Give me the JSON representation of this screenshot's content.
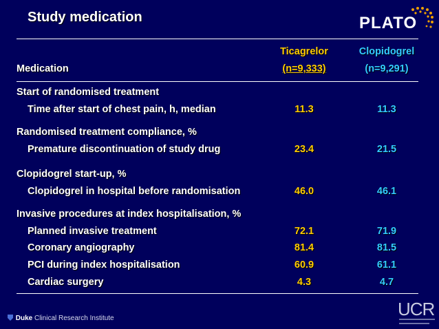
{
  "slide": {
    "title": "Study medication",
    "logo_text": "PLATO",
    "header": {
      "row_label": "Medication",
      "col1_name": "Ticagrelor",
      "col1_n": "(n=9,333)",
      "col2_name": "Clopidogrel",
      "col2_n": "(n=9,291)"
    },
    "sections": [
      {
        "heading": "Start of randomised treatment",
        "rows": [
          {
            "label": "Time after start of chest pain, h, median",
            "ticagrelor": "11.3",
            "clopidogrel": "11.3"
          }
        ]
      },
      {
        "heading": "Randomised treatment compliance, %",
        "rows": [
          {
            "label": "Premature discontinuation of study drug",
            "ticagrelor": "23.4",
            "clopidogrel": "21.5"
          }
        ]
      },
      {
        "heading": "Clopidogrel start-up, %",
        "rows": [
          {
            "label": "Clopidogrel in hospital before randomisation",
            "ticagrelor": "46.0",
            "clopidogrel": "46.1"
          }
        ]
      },
      {
        "heading": "Invasive procedures at index hospitalisation, %",
        "rows": [
          {
            "label": "Planned invasive treatment",
            "ticagrelor": "72.1",
            "clopidogrel": "71.9"
          },
          {
            "label": "Coronary angiography",
            "ticagrelor": "81.4",
            "clopidogrel": "81.5"
          },
          {
            "label": "PCI during index hospitalisation",
            "ticagrelor": "60.9",
            "clopidogrel": "61.1"
          },
          {
            "label": "Cardiac surgery",
            "ticagrelor": "4.3",
            "clopidogrel": "4.7"
          }
        ]
      }
    ],
    "footer": {
      "org_bold": "Duke",
      "org_rest": "Clinical Research Institute",
      "ucr_logo": "UCR"
    },
    "colors": {
      "background": "#00005c",
      "ticagrelor": "#ffcc00",
      "clopidogrel": "#33ccff",
      "text": "#ffffff"
    }
  }
}
